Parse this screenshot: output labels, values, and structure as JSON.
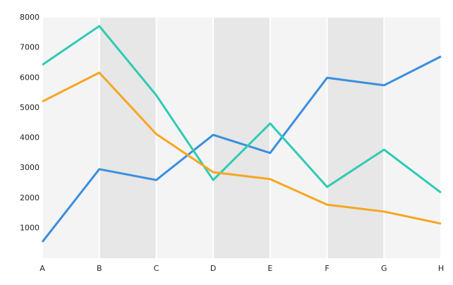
{
  "chart_data": {
    "type": "line",
    "categories": [
      "A",
      "B",
      "C",
      "D",
      "E",
      "F",
      "G",
      "H"
    ],
    "series": [
      {
        "color": "#3a8ee0",
        "values": [
          540,
          2960,
          2600,
          4100,
          3500,
          6000,
          5750,
          6710
        ]
      },
      {
        "color": "#2ecbb5",
        "values": [
          6430,
          7720,
          5420,
          2600,
          4480,
          2370,
          3610,
          2180
        ]
      },
      {
        "color": "#f6a623",
        "values": [
          5210,
          6170,
          4130,
          2860,
          2630,
          1780,
          1550,
          1150
        ]
      }
    ],
    "ylim": [
      0,
      8000
    ],
    "yticks": [
      1000,
      2000,
      3000,
      4000,
      5000,
      6000,
      7000,
      8000
    ]
  }
}
